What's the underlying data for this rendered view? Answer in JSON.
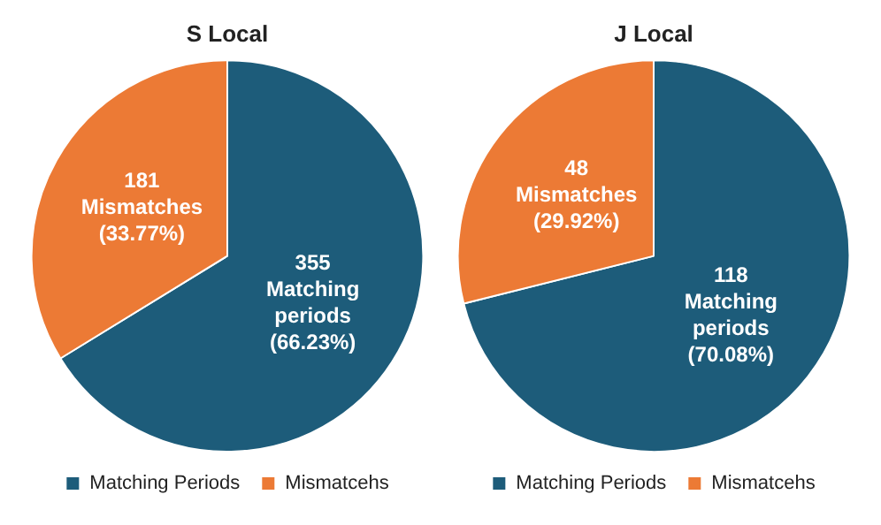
{
  "chart_data": [
    {
      "type": "pie",
      "title": "S Local",
      "categories": [
        "Matching Periods",
        "Mismatcehs"
      ],
      "values": [
        355,
        181
      ],
      "colors": [
        "#1d5c7a",
        "#ec7a35"
      ],
      "value_labels": [
        "355\nMatching\nperiods\n(66.23%)",
        "181\nMismatches\n(33.77%)"
      ],
      "legend": "bottom"
    },
    {
      "type": "pie",
      "title": "J Local",
      "categories": [
        "Matching Periods",
        "Mismatcehs"
      ],
      "values": [
        118,
        48
      ],
      "colors": [
        "#1d5c7a",
        "#ec7a35"
      ],
      "value_labels": [
        "118\nMatching\nperiods\n(70.08%)",
        "48\nMismatches\n(29.92%)"
      ],
      "legend": "bottom"
    }
  ]
}
